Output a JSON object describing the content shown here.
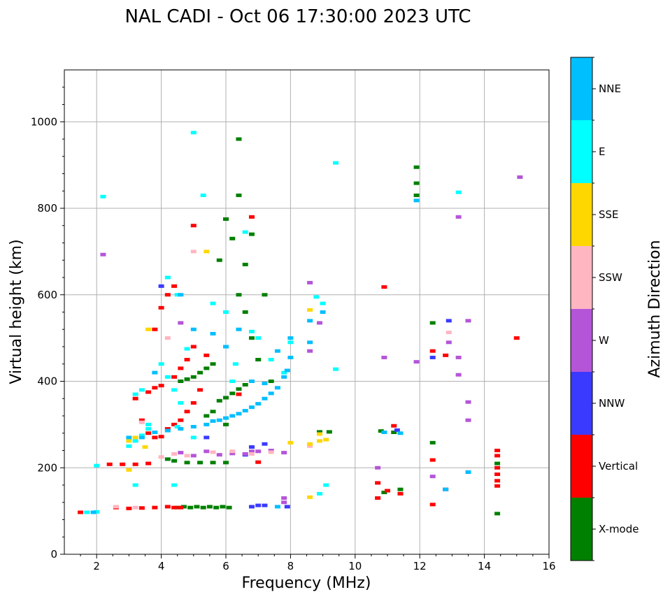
{
  "chart_data": {
    "type": "scatter",
    "title": "NAL CADI - Oct 06 17:30:00 2023 UTC",
    "xlabel": "Frequency (MHz)",
    "ylabel": "Virtual height (km)",
    "xlim": [
      1,
      16
    ],
    "ylim": [
      0,
      1120
    ],
    "xticks": [
      2,
      4,
      6,
      8,
      10,
      12,
      14,
      16
    ],
    "yticks": [
      0,
      200,
      400,
      600,
      800,
      1000
    ],
    "grid": true,
    "colorbar": {
      "title": "Azimuth Direction",
      "categories": [
        {
          "label": "X-mode",
          "color": "#008000"
        },
        {
          "label": "Vertical",
          "color": "#ff0000"
        },
        {
          "label": "NNW",
          "color": "#3a3aff"
        },
        {
          "label": "W",
          "color": "#b455d8"
        },
        {
          "label": "SSW",
          "color": "#ffb6c1"
        },
        {
          "label": "SSE",
          "color": "#ffd700"
        },
        {
          "label": "E",
          "color": "#00ffff"
        },
        {
          "label": "NNE",
          "color": "#00bfff"
        }
      ]
    },
    "series": [
      {
        "name": "X-mode",
        "points": [
          [
            4.5,
            108
          ],
          [
            4.7,
            110
          ],
          [
            4.9,
            108
          ],
          [
            5.1,
            110
          ],
          [
            5.3,
            108
          ],
          [
            5.5,
            110
          ],
          [
            5.7,
            108
          ],
          [
            5.9,
            110
          ],
          [
            6.1,
            108
          ],
          [
            4.2,
            220
          ],
          [
            4.4,
            216
          ],
          [
            4.8,
            212
          ],
          [
            5.2,
            212
          ],
          [
            5.6,
            212
          ],
          [
            6.0,
            212
          ],
          [
            4.6,
            400
          ],
          [
            4.8,
            405
          ],
          [
            5.0,
            410
          ],
          [
            5.2,
            420
          ],
          [
            5.4,
            430
          ],
          [
            5.6,
            440
          ],
          [
            5.8,
            355
          ],
          [
            6.0,
            362
          ],
          [
            6.2,
            372
          ],
          [
            6.4,
            382
          ],
          [
            6.6,
            392
          ],
          [
            5.4,
            320
          ],
          [
            5.6,
            330
          ],
          [
            6.0,
            300
          ],
          [
            6.4,
            960
          ],
          [
            6.4,
            830
          ],
          [
            6.4,
            600
          ],
          [
            6.6,
            560
          ],
          [
            6.8,
            500
          ],
          [
            7.0,
            450
          ],
          [
            7.2,
            600
          ],
          [
            7.4,
            400
          ],
          [
            11.9,
            895
          ],
          [
            11.9,
            858
          ],
          [
            11.9,
            830
          ],
          [
            12.4,
            535
          ],
          [
            12.4,
            258
          ],
          [
            14.4,
            94
          ],
          [
            14.4,
            210
          ],
          [
            11.4,
            150
          ],
          [
            10.9,
            143
          ],
          [
            10.8,
            285
          ],
          [
            11.2,
            282
          ],
          [
            8.9,
            283
          ],
          [
            9.2,
            283
          ],
          [
            6.8,
            740
          ],
          [
            6.0,
            775
          ],
          [
            6.2,
            730
          ],
          [
            5.8,
            680
          ],
          [
            6.6,
            670
          ]
        ]
      },
      {
        "name": "Vertical",
        "points": [
          [
            1.5,
            97
          ],
          [
            2.6,
            108
          ],
          [
            3.0,
            106
          ],
          [
            3.4,
            107
          ],
          [
            3.8,
            108
          ],
          [
            4.2,
            110
          ],
          [
            4.4,
            108
          ],
          [
            4.6,
            108
          ],
          [
            2.4,
            208
          ],
          [
            2.8,
            208
          ],
          [
            3.2,
            208
          ],
          [
            3.6,
            210
          ],
          [
            7.0,
            213
          ],
          [
            3.2,
            360
          ],
          [
            3.6,
            375
          ],
          [
            3.8,
            385
          ],
          [
            4.0,
            390
          ],
          [
            4.4,
            410
          ],
          [
            4.6,
            430
          ],
          [
            4.8,
            450
          ],
          [
            5.0,
            480
          ],
          [
            3.6,
            280
          ],
          [
            3.8,
            270
          ],
          [
            4.0,
            272
          ],
          [
            4.2,
            290
          ],
          [
            4.4,
            300
          ],
          [
            4.6,
            310
          ],
          [
            4.8,
            330
          ],
          [
            5.0,
            350
          ],
          [
            5.2,
            380
          ],
          [
            3.4,
            310
          ],
          [
            3.8,
            520
          ],
          [
            4.0,
            570
          ],
          [
            4.2,
            600
          ],
          [
            4.4,
            620
          ],
          [
            5.0,
            760
          ],
          [
            5.4,
            460
          ],
          [
            6.4,
            370
          ],
          [
            6.8,
            780
          ],
          [
            10.7,
            165
          ],
          [
            10.7,
            130
          ],
          [
            11.0,
            147
          ],
          [
            11.4,
            140
          ],
          [
            11.2,
            297
          ],
          [
            10.9,
            618
          ],
          [
            12.4,
            470
          ],
          [
            12.8,
            460
          ],
          [
            12.8,
            150
          ],
          [
            12.4,
            218
          ],
          [
            12.4,
            115
          ],
          [
            14.4,
            240
          ],
          [
            14.4,
            228
          ],
          [
            14.4,
            200
          ],
          [
            14.4,
            185
          ],
          [
            14.4,
            170
          ],
          [
            14.4,
            158
          ],
          [
            15.0,
            500
          ]
        ]
      },
      {
        "name": "NNW",
        "points": [
          [
            6.8,
            110
          ],
          [
            7.0,
            113
          ],
          [
            7.2,
            113
          ],
          [
            7.9,
            110
          ],
          [
            7.2,
            255
          ],
          [
            6.8,
            248
          ],
          [
            12.4,
            455
          ],
          [
            12.9,
            540
          ],
          [
            11.3,
            287
          ],
          [
            13.5,
            190
          ],
          [
            4.0,
            620
          ],
          [
            5.4,
            270
          ],
          [
            6.6,
            230
          ]
        ]
      },
      {
        "name": "W",
        "points": [
          [
            4.6,
            235
          ],
          [
            5.0,
            228
          ],
          [
            5.4,
            238
          ],
          [
            5.8,
            230
          ],
          [
            6.2,
            233
          ],
          [
            6.6,
            232
          ],
          [
            6.8,
            238
          ],
          [
            7.0,
            238
          ],
          [
            7.4,
            240
          ],
          [
            7.8,
            235
          ],
          [
            8.6,
            628
          ],
          [
            8.6,
            470
          ],
          [
            8.9,
            535
          ],
          [
            10.7,
            200
          ],
          [
            10.9,
            455
          ],
          [
            11.9,
            445
          ],
          [
            12.4,
            180
          ],
          [
            12.9,
            490
          ],
          [
            13.2,
            455
          ],
          [
            13.2,
            415
          ],
          [
            13.2,
            780
          ],
          [
            13.5,
            540
          ],
          [
            13.5,
            352
          ],
          [
            13.5,
            310
          ],
          [
            15.1,
            872
          ],
          [
            2.2,
            693
          ],
          [
            4.6,
            535
          ],
          [
            7.8,
            130
          ],
          [
            7.8,
            120
          ]
        ]
      },
      {
        "name": "SSW",
        "points": [
          [
            2.6,
            110
          ],
          [
            3.2,
            108
          ],
          [
            4.0,
            225
          ],
          [
            4.4,
            232
          ],
          [
            4.8,
            228
          ],
          [
            5.6,
            236
          ],
          [
            6.2,
            238
          ],
          [
            6.8,
            232
          ],
          [
            7.4,
            236
          ],
          [
            8.6,
            250
          ],
          [
            12.9,
            513
          ],
          [
            3.4,
            305
          ],
          [
            4.2,
            500
          ],
          [
            5.0,
            700
          ]
        ]
      },
      {
        "name": "SSE",
        "points": [
          [
            3.0,
            262
          ],
          [
            3.2,
            270
          ],
          [
            3.5,
            248
          ],
          [
            3.6,
            520
          ],
          [
            5.4,
            700
          ],
          [
            8.6,
            255
          ],
          [
            8.6,
            565
          ],
          [
            8.9,
            278
          ],
          [
            8.9,
            262
          ],
          [
            9.1,
            265
          ],
          [
            8.6,
            132
          ],
          [
            8.0,
            258
          ],
          [
            3.0,
            195
          ]
        ]
      },
      {
        "name": "E",
        "points": [
          [
            1.7,
            97
          ],
          [
            2.0,
            98
          ],
          [
            2.2,
            827
          ],
          [
            2.0,
            205
          ],
          [
            3.0,
            250
          ],
          [
            3.2,
            262
          ],
          [
            3.4,
            275
          ],
          [
            3.6,
            290
          ],
          [
            3.2,
            370
          ],
          [
            3.4,
            380
          ],
          [
            3.6,
            300
          ],
          [
            4.0,
            440
          ],
          [
            4.2,
            410
          ],
          [
            4.4,
            380
          ],
          [
            4.6,
            350
          ],
          [
            4.2,
            640
          ],
          [
            4.5,
            600
          ],
          [
            4.8,
            475
          ],
          [
            5.0,
            975
          ],
          [
            5.3,
            830
          ],
          [
            5.6,
            580
          ],
          [
            6.0,
            560
          ],
          [
            6.3,
            440
          ],
          [
            6.2,
            400
          ],
          [
            6.6,
            745
          ],
          [
            6.8,
            515
          ],
          [
            7.0,
            500
          ],
          [
            7.4,
            450
          ],
          [
            7.8,
            420
          ],
          [
            8.0,
            490
          ],
          [
            8.8,
            595
          ],
          [
            9.0,
            580
          ],
          [
            9.4,
            905
          ],
          [
            9.4,
            428
          ],
          [
            9.1,
            160
          ],
          [
            8.9,
            140
          ],
          [
            13.2,
            837
          ],
          [
            4.4,
            160
          ],
          [
            3.2,
            160
          ],
          [
            4.5,
            295
          ],
          [
            5.0,
            270
          ]
        ]
      },
      {
        "name": "NNE",
        "points": [
          [
            1.9,
            97
          ],
          [
            3.0,
            270
          ],
          [
            3.4,
            270
          ],
          [
            3.8,
            282
          ],
          [
            4.2,
            286
          ],
          [
            4.6,
            290
          ],
          [
            5.0,
            295
          ],
          [
            5.4,
            300
          ],
          [
            5.6,
            308
          ],
          [
            5.8,
            310
          ],
          [
            6.0,
            315
          ],
          [
            6.2,
            320
          ],
          [
            6.4,
            325
          ],
          [
            6.6,
            332
          ],
          [
            6.8,
            340
          ],
          [
            7.0,
            348
          ],
          [
            7.2,
            360
          ],
          [
            7.4,
            372
          ],
          [
            7.6,
            385
          ],
          [
            7.8,
            410
          ],
          [
            7.9,
            425
          ],
          [
            8.0,
            455
          ],
          [
            8.0,
            500
          ],
          [
            8.6,
            490
          ],
          [
            8.6,
            540
          ],
          [
            9.0,
            560
          ],
          [
            11.9,
            818
          ],
          [
            12.8,
            150
          ],
          [
            13.5,
            190
          ],
          [
            10.9,
            282
          ],
          [
            11.4,
            280
          ],
          [
            7.6,
            110
          ],
          [
            4.6,
            600
          ],
          [
            5.0,
            520
          ],
          [
            5.6,
            510
          ],
          [
            6.0,
            480
          ],
          [
            6.4,
            520
          ],
          [
            6.8,
            400
          ],
          [
            7.2,
            395
          ],
          [
            7.6,
            470
          ],
          [
            3.8,
            420
          ]
        ]
      }
    ]
  }
}
